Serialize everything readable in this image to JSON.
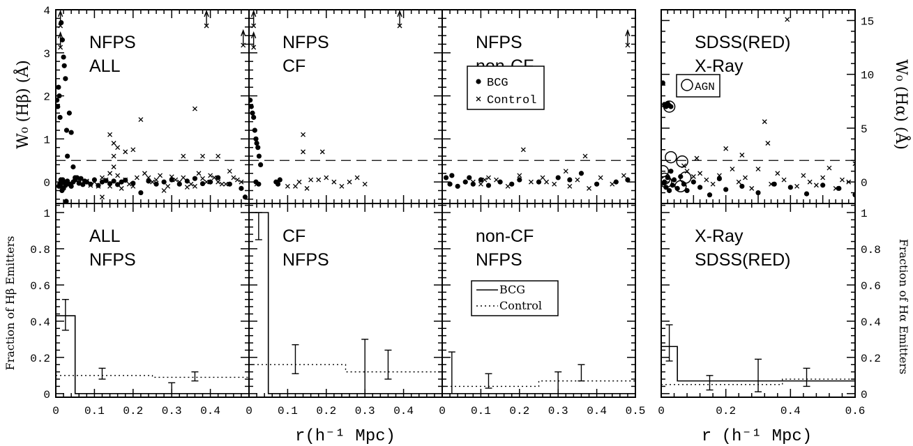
{
  "figure": {
    "x_axis_label_left": "r(h⁻¹ Mpc)",
    "x_axis_label_right": "r (h⁻¹ Mpc)",
    "y_label_top_left": "W₀ (Hβ) (Å)",
    "y_label_top_right": "W₀ (Hα) (Å)",
    "y_label_bottom_left": "Fraction of Hβ Emitters",
    "y_label_bottom_right": "Fraction of Hα Emitters"
  },
  "legends": {
    "scatter": {
      "bcg": "BCG",
      "control": "Control",
      "agn": "AGN"
    },
    "fraction": {
      "bcg": "BCG",
      "control": "Control"
    }
  },
  "chart_data": [
    {
      "id": "nfps-all-ew",
      "type": "scatter",
      "labels": [
        "NFPS",
        "ALL"
      ],
      "xlim": [
        0,
        0.5
      ],
      "ylim": [
        -0.5,
        4
      ],
      "yticks": [
        0,
        1,
        2,
        3,
        4
      ],
      "ytick_labels": [
        "0",
        "1",
        "2",
        "3",
        "4"
      ],
      "threshold": 0.5,
      "series": [
        {
          "name": "BCG",
          "marker": "dot",
          "x": [
            0.003,
            0.005,
            0.007,
            0.009,
            0.011,
            0.014,
            0.017,
            0.02,
            0.022,
            0.025,
            0.028,
            0.03,
            0.035,
            0.04,
            0.045,
            0.05,
            0.01,
            0.012,
            0.015,
            0.018,
            0.02,
            0.023,
            0.025,
            0.03,
            0.035,
            0.04,
            0.045,
            0.05,
            0.055,
            0.06,
            0.065,
            0.07,
            0.075,
            0.08,
            0.09,
            0.1,
            0.11,
            0.12,
            0.13,
            0.14,
            0.15,
            0.16,
            0.17,
            0.18,
            0.2,
            0.22,
            0.24,
            0.26,
            0.28,
            0.3,
            0.32,
            0.34,
            0.36,
            0.38,
            0.4,
            0.42,
            0.45,
            0.48,
            0.49,
            0.008,
            0.013,
            0.016,
            0.027
          ],
          "y": [
            1.9,
            1.75,
            2.2,
            2.0,
            1.5,
            3.7,
            3.3,
            2.9,
            2.7,
            2.4,
            1.2,
            0.6,
            1.6,
            1.15,
            0.35,
            0.1,
            -0.05,
            -0.1,
            -0.02,
            0.05,
            -0.15,
            0.0,
            -0.08,
            0.02,
            -0.05,
            -0.1,
            0.0,
            0.05,
            0.1,
            -0.03,
            0.08,
            -0.06,
            0.02,
            0.0,
            -0.05,
            0.05,
            -0.08,
            0.0,
            0.03,
            -0.04,
            0.02,
            -0.06,
            0.0,
            0.04,
            -0.03,
            -0.25,
            0.02,
            -0.05,
            0.0,
            0.05,
            -0.05,
            0.02,
            0.08,
            -0.04,
            0.0,
            0.1,
            -0.05,
            -0.15,
            -0.35,
            -0.1,
            0.05,
            -0.2,
            -0.45
          ]
        },
        {
          "name": "Control",
          "marker": "cross",
          "x": [
            0.14,
            0.15,
            0.16,
            0.15,
            0.18,
            0.2,
            0.22,
            0.33,
            0.36,
            0.38,
            0.42,
            0.15,
            0.1,
            0.12,
            0.14,
            0.16,
            0.18,
            0.19,
            0.21,
            0.23,
            0.25,
            0.27,
            0.29,
            0.31,
            0.33,
            0.35,
            0.37,
            0.39,
            0.41,
            0.43,
            0.45,
            0.47,
            0.11,
            0.13,
            0.17,
            0.24,
            0.28,
            0.32,
            0.36,
            0.4,
            0.44,
            0.46,
            0.48,
            0.06,
            0.08,
            0.09,
            0.14,
            0.2,
            0.26,
            0.3,
            0.34,
            0.38,
            0.42,
            0.12
          ],
          "y": [
            1.1,
            0.9,
            0.8,
            0.6,
            0.7,
            0.75,
            1.45,
            0.6,
            1.7,
            0.6,
            0.6,
            0.35,
            0.0,
            0.1,
            -0.1,
            0.15,
            0.05,
            -0.05,
            0.1,
            0.2,
            0.0,
            0.15,
            -0.1,
            0.05,
            0.1,
            -0.05,
            0.2,
            0.0,
            0.1,
            -0.05,
            0.25,
            0.05,
            -0.1,
            0.05,
            -0.15,
            0.1,
            -0.2,
            0.0,
            -0.1,
            0.15,
            -0.05,
            0.1,
            0.0,
            0.05,
            0.02,
            -0.08,
            0.2,
            -0.1,
            0.05,
            0.12,
            -0.12,
            0.08,
            0.0,
            -0.35
          ]
        }
      ],
      "arrows": [
        {
          "x": 0.012,
          "y": 4.0
        },
        {
          "x": 0.012,
          "y": 3.5
        },
        {
          "x": 0.39,
          "y": 4.0
        },
        {
          "x": 0.485,
          "y": 3.55
        }
      ]
    },
    {
      "id": "nfps-cf-ew",
      "type": "scatter",
      "labels": [
        "NFPS",
        "CF"
      ],
      "xlim": [
        0,
        0.5
      ],
      "ylim": [
        -0.5,
        4
      ],
      "threshold": 0.5,
      "series": [
        {
          "name": "BCG",
          "marker": "dot",
          "x": [
            0.003,
            0.006,
            0.009,
            0.012,
            0.015,
            0.018,
            0.02,
            0.023,
            0.026,
            0.03,
            0.018,
            0.025,
            0.07,
            0.075,
            0.08
          ],
          "y": [
            1.9,
            1.75,
            1.6,
            1.5,
            1.2,
            1.0,
            0.9,
            0.8,
            0.6,
            0.4,
            0.0,
            -0.05,
            0.0,
            -0.05,
            0.05
          ],
          "scatter_tail": true
        },
        {
          "name": "Control",
          "marker": "cross",
          "x": [
            0.14,
            0.14,
            0.19,
            0.18,
            0.1,
            0.12,
            0.13,
            0.15,
            0.2,
            0.22,
            0.28,
            0.3,
            0.16,
            0.24,
            0.26,
            0.02
          ],
          "y": [
            1.1,
            0.7,
            0.7,
            0.05,
            -0.1,
            -0.1,
            0.0,
            -0.15,
            0.1,
            0.0,
            0.1,
            -0.05,
            0.05,
            -0.1,
            0.0,
            -0.05
          ]
        }
      ],
      "arrows": [
        {
          "x": 0.012,
          "y": 4.0
        },
        {
          "x": 0.012,
          "y": 3.5
        },
        {
          "x": 0.39,
          "y": 4.0
        }
      ]
    },
    {
      "id": "nfps-noncf-ew",
      "type": "scatter",
      "labels": [
        "NFPS",
        "non-CF"
      ],
      "xlim": [
        0,
        0.5
      ],
      "ylim": [
        -0.5,
        4
      ],
      "threshold": 0.5,
      "series": [
        {
          "name": "BCG",
          "marker": "dot",
          "x": [
            0.01,
            0.02,
            0.025,
            0.04,
            0.06,
            0.07,
            0.08,
            0.1,
            0.12,
            0.15,
            0.18,
            0.2,
            0.25,
            0.3,
            0.33,
            0.36,
            0.4,
            0.45,
            0.48
          ],
          "y": [
            0.1,
            -0.05,
            0.15,
            -0.1,
            0.0,
            0.1,
            -0.05,
            0.05,
            -0.08,
            0.0,
            -0.05,
            0.05,
            0.0,
            0.1,
            0.05,
            0.2,
            -0.05,
            0.0,
            0.05
          ],
          "scatter_tail": true
        },
        {
          "name": "Control",
          "marker": "cross",
          "x": [
            0.21,
            0.37,
            0.08,
            0.1,
            0.12,
            0.14,
            0.17,
            0.2,
            0.23,
            0.26,
            0.29,
            0.32,
            0.35,
            0.38,
            0.41,
            0.44,
            0.47,
            0.11,
            0.27,
            0.33
          ],
          "y": [
            0.75,
            0.6,
            0.0,
            -0.05,
            0.1,
            0.05,
            -0.1,
            0.15,
            0.0,
            0.1,
            -0.05,
            0.25,
            0.05,
            -0.15,
            0.1,
            -0.05,
            0.15,
            0.05,
            0.0,
            -0.1
          ]
        }
      ],
      "arrows": [
        {
          "x": 0.48,
          "y": 3.55
        }
      ]
    },
    {
      "id": "sdss-xray-ew",
      "type": "scatter",
      "labels": [
        "SDSS(RED)",
        "X-Ray"
      ],
      "xlim": [
        0,
        0.6
      ],
      "ylim": [
        -2,
        16
      ],
      "yticks": [
        0,
        5,
        10,
        15
      ],
      "ytick_labels": [
        "0",
        "5",
        "10",
        "15"
      ],
      "threshold": 2,
      "series": [
        {
          "name": "BCG",
          "marker": "dot",
          "x": [
            0.005,
            0.01,
            0.015,
            0.02,
            0.025,
            0.03,
            0.01,
            0.015,
            0.02,
            0.025,
            0.03,
            0.035,
            0.04,
            0.05,
            0.06,
            0.07,
            0.08,
            0.1,
            0.12,
            0.15,
            0.18,
            0.2,
            0.25,
            0.3,
            0.35,
            0.4,
            0.45,
            0.5,
            0.55,
            0.6,
            0.008
          ],
          "y": [
            9.2,
            7.2,
            7.0,
            7.3,
            7.1,
            7.0,
            0.0,
            -0.5,
            0.4,
            -0.8,
            1.0,
            -0.3,
            0.2,
            -0.6,
            0.5,
            -0.2,
            -0.8,
            0.0,
            -0.5,
            -1.2,
            0.3,
            -0.7,
            -0.4,
            -1.0,
            -0.2,
            -0.5,
            -1.1,
            -0.3,
            -0.6,
            -1.2,
            -0.1
          ]
        },
        {
          "name": "Control",
          "marker": "cross",
          "x": [
            0.39,
            0.32,
            0.33,
            0.2,
            0.11,
            0.25,
            0.07,
            0.08,
            0.1,
            0.12,
            0.14,
            0.16,
            0.18,
            0.22,
            0.24,
            0.26,
            0.28,
            0.3,
            0.34,
            0.36,
            0.38,
            0.42,
            0.44,
            0.46,
            0.48,
            0.5,
            0.52,
            0.54,
            0.56,
            0.58,
            0.6
          ],
          "y": [
            15.1,
            5.6,
            3.6,
            3.1,
            2.2,
            2.5,
            1.5,
            1.0,
            0.5,
            0.8,
            0.2,
            -0.2,
            0.6,
            1.2,
            0.0,
            0.4,
            -0.6,
            1.2,
            -0.2,
            0.8,
            0.2,
            -0.4,
            0.6,
            0.0,
            -0.3,
            0.4,
            1.3,
            -0.6,
            0.2,
            0.0,
            1.7
          ]
        }
      ],
      "agn": {
        "x": [
          0.025,
          0.03,
          0.065,
          0.005,
          0.01,
          0.075,
          0.06,
          0.015
        ],
        "y": [
          7.0,
          2.3,
          1.9,
          1.0,
          0.3,
          0.4,
          -0.4,
          0.0
        ]
      }
    },
    {
      "id": "nfps-all-frac",
      "type": "line",
      "labels": [
        "ALL",
        "NFPS"
      ],
      "xlim": [
        0,
        0.5
      ],
      "ylim": [
        -0.02,
        1.05
      ],
      "yticks": [
        0,
        0.2,
        0.4,
        0.6,
        0.8,
        1
      ],
      "ytick_labels": [
        "0",
        "0.2",
        "0.4",
        "0.6",
        "0.8",
        "1"
      ],
      "series": [
        {
          "name": "BCG",
          "style": "solid",
          "steps": [
            {
              "x0": 0,
              "x1": 0.05,
              "y": 0.43
            },
            {
              "x0": 0.05,
              "x1": 0.5,
              "y": 0.0
            }
          ]
        },
        {
          "name": "Control",
          "style": "dotted",
          "steps": [
            {
              "x0": 0,
              "x1": 0.25,
              "y": 0.1
            },
            {
              "x0": 0.25,
              "x1": 0.5,
              "y": 0.09
            }
          ]
        }
      ],
      "errorbars": [
        {
          "x": 0.025,
          "lo": 0.35,
          "hi": 0.52
        },
        {
          "x": 0.12,
          "lo": 0.08,
          "hi": 0.14
        },
        {
          "x": 0.3,
          "lo": 0.0,
          "hi": 0.06
        },
        {
          "x": 0.36,
          "lo": 0.07,
          "hi": 0.12
        }
      ]
    },
    {
      "id": "nfps-cf-frac",
      "type": "line",
      "labels": [
        "CF",
        "NFPS"
      ],
      "xlim": [
        0,
        0.5
      ],
      "ylim": [
        -0.02,
        1.05
      ],
      "series": [
        {
          "name": "BCG",
          "style": "solid",
          "steps": [
            {
              "x0": 0,
              "x1": 0.05,
              "y": 1.0
            },
            {
              "x0": 0.05,
              "x1": 0.5,
              "y": 0.0
            }
          ]
        },
        {
          "name": "Control",
          "style": "dotted",
          "steps": [
            {
              "x0": 0,
              "x1": 0.25,
              "y": 0.16
            },
            {
              "x0": 0.25,
              "x1": 0.5,
              "y": 0.12
            }
          ]
        }
      ],
      "errorbars": [
        {
          "x": 0.025,
          "lo": 0.85,
          "hi": 1.0
        },
        {
          "x": 0.12,
          "lo": 0.11,
          "hi": 0.27
        },
        {
          "x": 0.3,
          "lo": 0.0,
          "hi": 0.3
        },
        {
          "x": 0.36,
          "lo": 0.08,
          "hi": 0.24
        }
      ]
    },
    {
      "id": "nfps-noncf-frac",
      "type": "line",
      "labels": [
        "non-CF",
        "NFPS"
      ],
      "xlim": [
        0,
        0.5
      ],
      "ylim": [
        -0.02,
        1.05
      ],
      "xticks": [
        0,
        0.1,
        0.2,
        0.3,
        0.4,
        0.5
      ],
      "xtick_labels": [
        "0",
        "0.1",
        "0.2",
        "0.3",
        "0.4",
        "0.5"
      ],
      "series": [
        {
          "name": "BCG",
          "style": "solid",
          "steps": [
            {
              "x0": 0,
              "x1": 0.5,
              "y": 0.0
            }
          ]
        },
        {
          "name": "Control",
          "style": "dotted",
          "steps": [
            {
              "x0": 0,
              "x1": 0.25,
              "y": 0.04
            },
            {
              "x0": 0.25,
              "x1": 0.5,
              "y": 0.07
            }
          ]
        }
      ],
      "errorbars": [
        {
          "x": 0.025,
          "lo": 0.0,
          "hi": 0.23
        },
        {
          "x": 0.12,
          "lo": 0.03,
          "hi": 0.11
        },
        {
          "x": 0.3,
          "lo": 0.0,
          "hi": 0.12
        },
        {
          "x": 0.36,
          "lo": 0.07,
          "hi": 0.16
        }
      ]
    },
    {
      "id": "sdss-xray-frac",
      "type": "line",
      "labels": [
        "X-Ray",
        "SDSS(RED)"
      ],
      "xlim": [
        0,
        0.6
      ],
      "ylim": [
        -0.02,
        1.05
      ],
      "xticks": [
        0,
        0.2,
        0.4,
        0.6
      ],
      "xtick_labels": [
        "0",
        "0.2",
        "0.4",
        "0.6"
      ],
      "yticks": [
        0,
        0.2,
        0.4,
        0.6,
        0.8,
        1
      ],
      "ytick_labels": [
        "0",
        "0.2",
        "0.4",
        "0.6",
        "0.8",
        "1"
      ],
      "series": [
        {
          "name": "BCG",
          "style": "solid",
          "steps": [
            {
              "x0": 0,
              "x1": 0.05,
              "y": 0.26
            },
            {
              "x0": 0.05,
              "x1": 0.6,
              "y": 0.07
            }
          ]
        },
        {
          "name": "Control",
          "style": "dotted",
          "steps": [
            {
              "x0": 0,
              "x1": 0.375,
              "y": 0.05
            },
            {
              "x0": 0.375,
              "x1": 0.6,
              "y": 0.08
            }
          ]
        }
      ],
      "errorbars": [
        {
          "x": 0.025,
          "lo": 0.18,
          "hi": 0.38
        },
        {
          "x": 0.15,
          "lo": 0.02,
          "hi": 0.1
        },
        {
          "x": 0.3,
          "lo": 0.01,
          "hi": 0.19
        },
        {
          "x": 0.45,
          "lo": 0.04,
          "hi": 0.14
        }
      ]
    }
  ],
  "x_ticks_left_panels": {
    "values": [
      0,
      0.1,
      0.2,
      0.3,
      0.4
    ],
    "labels": [
      "0",
      "0.1",
      "0.2",
      "0.3",
      "0.4"
    ]
  }
}
